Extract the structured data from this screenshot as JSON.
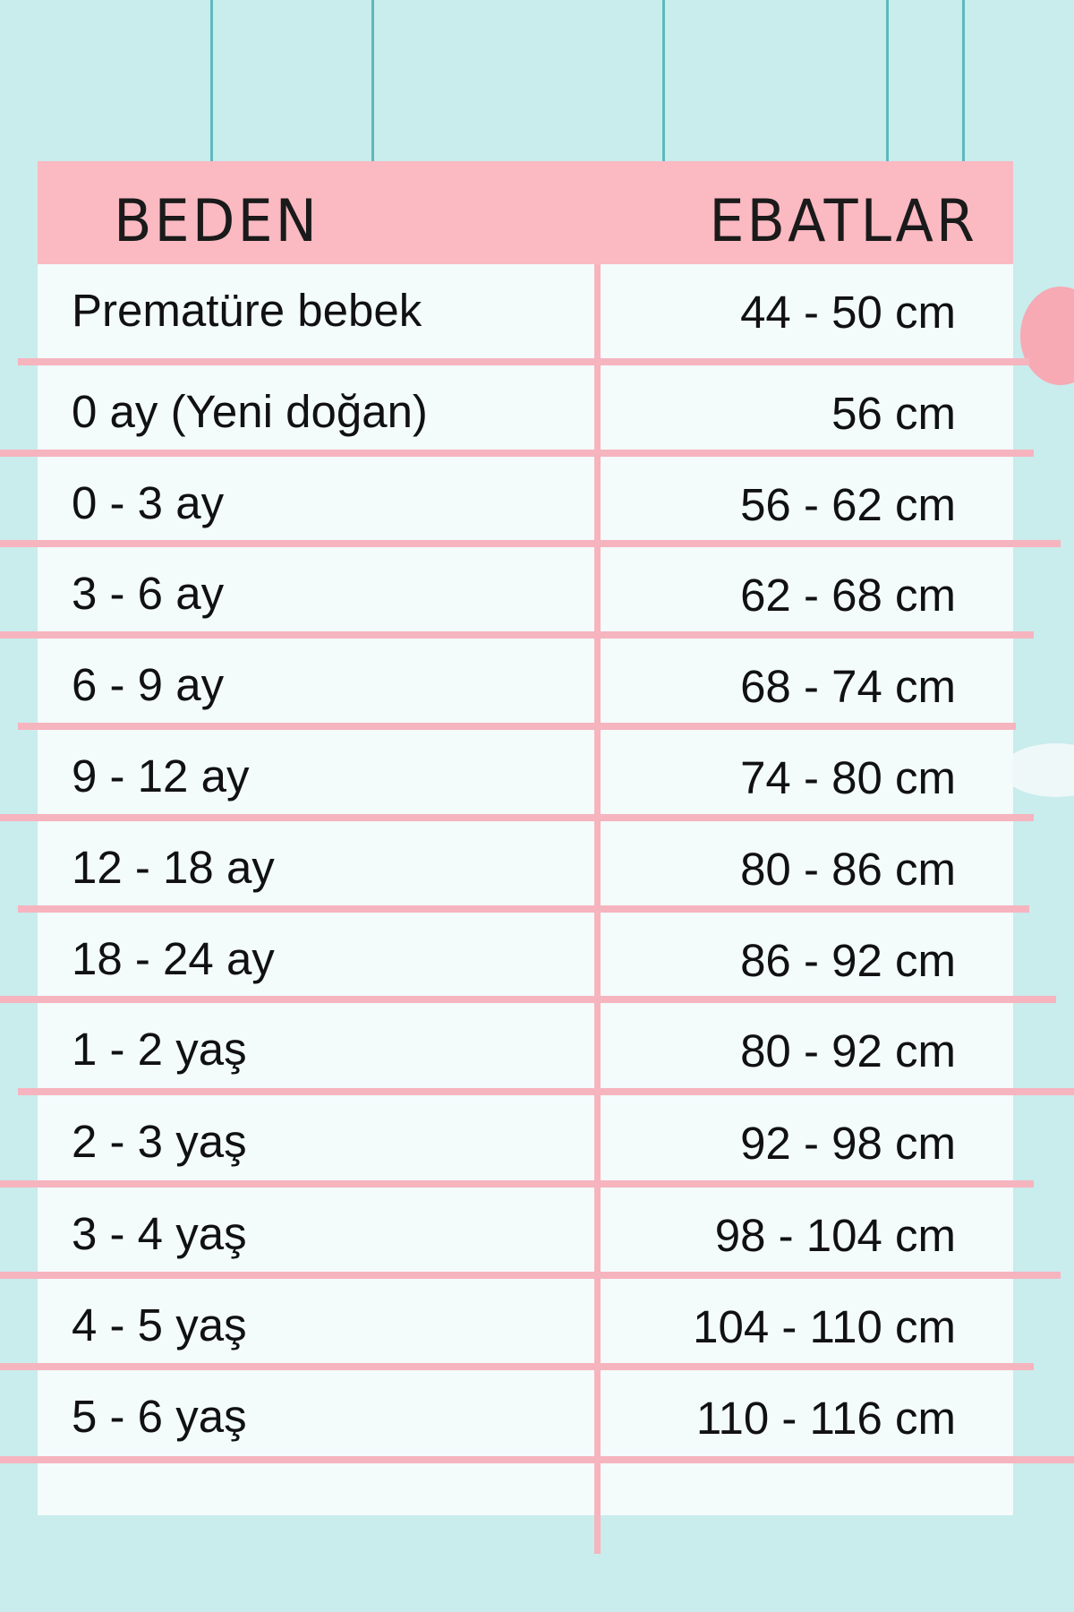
{
  "header": {
    "size_label": "BEDEN",
    "measure_label": "EBATLAR"
  },
  "rows": [
    {
      "size": "Prematüre bebek",
      "measure": "44 - 50 cm"
    },
    {
      "size": "0 ay (Yeni doğan)",
      "measure": "56 cm"
    },
    {
      "size": "0 - 3 ay",
      "measure": "56 - 62 cm"
    },
    {
      "size": "3 - 6 ay",
      "measure": "62 - 68 cm"
    },
    {
      "size": "6 - 9 ay",
      "measure": "68 - 74 cm"
    },
    {
      "size": "9 - 12 ay",
      "measure": "74 - 80 cm"
    },
    {
      "size": "12 - 18 ay",
      "measure": "80 - 86 cm"
    },
    {
      "size": "18 - 24 ay",
      "measure": "86 - 92 cm"
    },
    {
      "size": "1 - 2 yaş",
      "measure": "80 - 92 cm"
    },
    {
      "size": "2 - 3 yaş",
      "measure": "92 - 98 cm"
    },
    {
      "size": "3 - 4 yaş",
      "measure": "98 - 104 cm"
    },
    {
      "size": "4 - 5 yaş",
      "measure": "104 - 110 cm"
    },
    {
      "size": "5 - 6 yaş",
      "measure": "110 - 116 cm"
    }
  ],
  "colors": {
    "background": "#c9ecec",
    "header": "#fbb9c2",
    "lines": "#f6b4bf",
    "strings": "#5fb8bd"
  }
}
